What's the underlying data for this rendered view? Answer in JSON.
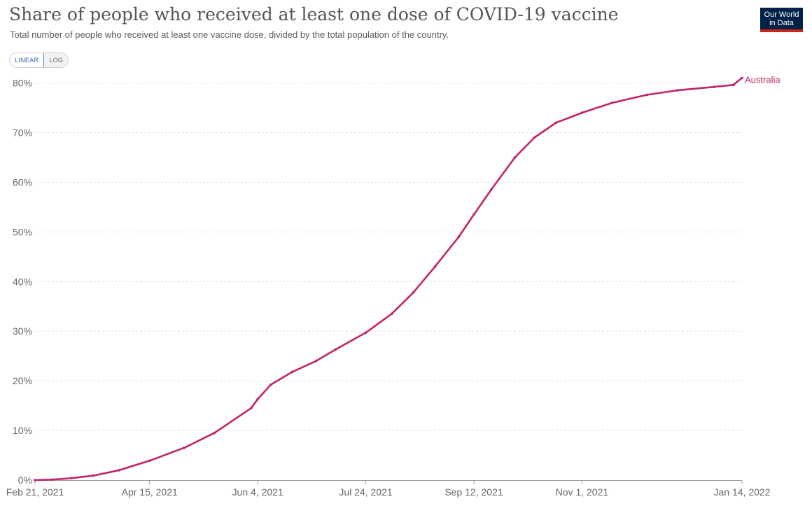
{
  "header": {
    "title": "Share of people who received at least one dose of COVID-19 vaccine",
    "subtitle": "Total number of people who received at least one vaccine dose, divided by the total population of the country."
  },
  "logo": {
    "line1": "Our World",
    "line2": "in Data"
  },
  "scale_toggle": {
    "options": [
      "LINEAR",
      "LOG"
    ],
    "selected": "LINEAR"
  },
  "colors": {
    "series": "#c0256b",
    "grid": "#dddddd",
    "logo_bg": "#002147",
    "logo_accent": "#ce261e"
  },
  "chart_data": {
    "type": "line",
    "x_axis_type": "date",
    "x_domain": [
      "2021-02-21",
      "2022-01-14"
    ],
    "y_range": [
      0,
      80
    ],
    "y_unit": "%",
    "y_ticks": [
      {
        "value": 0,
        "label": "0%"
      },
      {
        "value": 10,
        "label": "10%"
      },
      {
        "value": 20,
        "label": "20%"
      },
      {
        "value": 30,
        "label": "30%"
      },
      {
        "value": 40,
        "label": "40%"
      },
      {
        "value": 50,
        "label": "50%"
      },
      {
        "value": 60,
        "label": "60%"
      },
      {
        "value": 70,
        "label": "70%"
      },
      {
        "value": 80,
        "label": "80%"
      }
    ],
    "x_ticks": [
      {
        "date": "2021-02-21",
        "label": "Feb 21, 2021"
      },
      {
        "date": "2021-04-15",
        "label": "Apr 15, 2021"
      },
      {
        "date": "2021-06-04",
        "label": "Jun 4, 2021"
      },
      {
        "date": "2021-07-24",
        "label": "Jul 24, 2021"
      },
      {
        "date": "2021-09-12",
        "label": "Sep 12, 2021"
      },
      {
        "date": "2021-11-01",
        "label": "Nov 1, 2021"
      },
      {
        "date": "2022-01-14",
        "label": "Jan 14, 2022"
      }
    ],
    "grid": true,
    "series": [
      {
        "name": "Australia",
        "color": "#c0256b",
        "points": [
          {
            "x": "2021-02-21",
            "y": 0.0
          },
          {
            "x": "2021-03-01",
            "y": 0.1
          },
          {
            "x": "2021-03-10",
            "y": 0.4
          },
          {
            "x": "2021-03-20",
            "y": 0.9
          },
          {
            "x": "2021-04-01",
            "y": 2.0
          },
          {
            "x": "2021-04-15",
            "y": 3.9
          },
          {
            "x": "2021-05-01",
            "y": 6.5
          },
          {
            "x": "2021-05-15",
            "y": 9.5
          },
          {
            "x": "2021-06-01",
            "y": 14.5
          },
          {
            "x": "2021-06-04",
            "y": 16.3
          },
          {
            "x": "2021-06-10",
            "y": 19.2
          },
          {
            "x": "2021-06-20",
            "y": 21.8
          },
          {
            "x": "2021-07-01",
            "y": 24.0
          },
          {
            "x": "2021-07-10",
            "y": 26.3
          },
          {
            "x": "2021-07-24",
            "y": 29.7
          },
          {
            "x": "2021-08-05",
            "y": 33.5
          },
          {
            "x": "2021-08-15",
            "y": 37.8
          },
          {
            "x": "2021-08-25",
            "y": 43.0
          },
          {
            "x": "2021-09-05",
            "y": 49.0
          },
          {
            "x": "2021-09-12",
            "y": 53.5
          },
          {
            "x": "2021-09-20",
            "y": 58.5
          },
          {
            "x": "2021-10-01",
            "y": 65.0
          },
          {
            "x": "2021-10-10",
            "y": 69.0
          },
          {
            "x": "2021-10-20",
            "y": 72.0
          },
          {
            "x": "2021-11-01",
            "y": 74.0
          },
          {
            "x": "2021-11-15",
            "y": 76.0
          },
          {
            "x": "2021-12-01",
            "y": 77.6
          },
          {
            "x": "2021-12-15",
            "y": 78.5
          },
          {
            "x": "2022-01-01",
            "y": 79.2
          },
          {
            "x": "2022-01-10",
            "y": 79.6
          },
          {
            "x": "2022-01-14",
            "y": 81.0
          }
        ]
      }
    ]
  }
}
